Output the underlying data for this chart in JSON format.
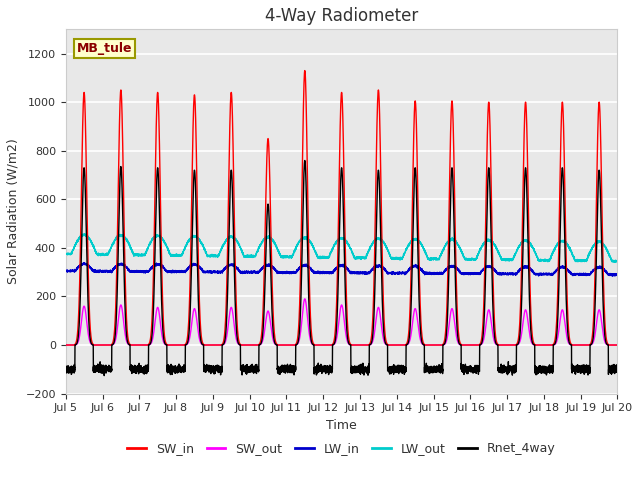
{
  "title": "4-Way Radiometer",
  "xlabel": "Time",
  "ylabel": "Solar Radiation (W/m2)",
  "station_label": "MB_tule",
  "ylim": [
    -200,
    1300
  ],
  "xlim": [
    0,
    15
  ],
  "xtick_labels": [
    "Jul 5",
    "Jul 6",
    "Jul 7",
    "Jul 8",
    "Jul 9",
    "Jul 10",
    "Jul 11",
    "Jul 12",
    "Jul 13",
    "Jul 14",
    "Jul 15",
    "Jul 16",
    "Jul 17",
    "Jul 18",
    "Jul 19",
    "Jul 20"
  ],
  "colors": {
    "SW_in": "#ff0000",
    "SW_out": "#ff00ff",
    "LW_in": "#0000cc",
    "LW_out": "#00cccc",
    "Rnet_4way": "#000000"
  },
  "background_color": "#ffffff",
  "plot_bg_color": "#e8e8e8",
  "title_fontsize": 12,
  "label_fontsize": 9,
  "tick_fontsize": 8,
  "legend_fontsize": 9,
  "num_days": 15,
  "pts_per_day": 480,
  "SW_in_peaks": [
    1040,
    1050,
    1040,
    1030,
    1040,
    850,
    1130,
    1040,
    1050,
    1005,
    1005,
    1000,
    1000,
    1000,
    1000
  ],
  "SW_out_peaks": [
    160,
    165,
    155,
    150,
    155,
    140,
    190,
    165,
    155,
    150,
    150,
    145,
    145,
    145,
    145
  ],
  "LW_in_base": 305,
  "LW_out_base": 375,
  "LW_out_day_peak": 80,
  "Rnet_peaks": [
    730,
    735,
    730,
    720,
    720,
    580,
    760,
    730,
    720,
    730,
    730,
    730,
    730,
    730,
    720
  ],
  "Rnet_night": -100
}
